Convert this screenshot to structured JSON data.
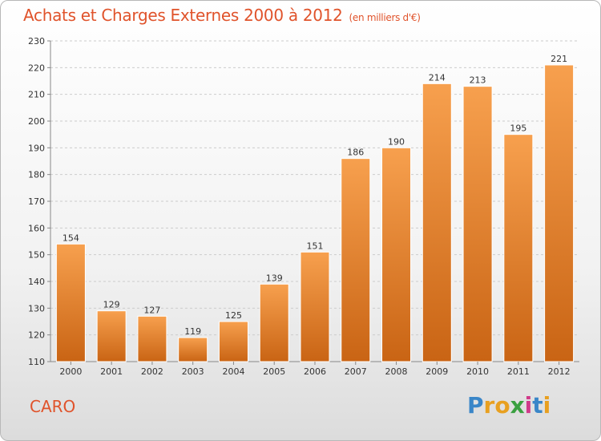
{
  "title": "Achats et Charges Externes 2000 à 2012",
  "subtitle": "(en milliers d'€)",
  "commune": "CARO",
  "logo": {
    "text": "Proxiti",
    "letters": [
      {
        "ch": "P",
        "color": "#3a86c8"
      },
      {
        "ch": "r",
        "color": "#e8a020"
      },
      {
        "ch": "o",
        "color": "#e8a020"
      },
      {
        "ch": "x",
        "color": "#3aa040"
      },
      {
        "ch": "i",
        "color": "#d03a8a"
      },
      {
        "ch": "t",
        "color": "#3a86c8"
      },
      {
        "ch": "i",
        "color": "#e8a020"
      }
    ]
  },
  "colors": {
    "title": "#e0532b",
    "bar_top": "#f7a04e",
    "bar_bottom": "#c96414",
    "grid": "#cccccc",
    "axis": "#888888"
  },
  "chart_data": {
    "type": "bar",
    "title": "Achats et Charges Externes 2000 à 2012",
    "subtitle": "(en milliers d'€)",
    "categories": [
      "2000",
      "2001",
      "2002",
      "2003",
      "2004",
      "2005",
      "2006",
      "2007",
      "2008",
      "2009",
      "2010",
      "2011",
      "2012"
    ],
    "values": [
      154,
      129,
      127,
      119,
      125,
      139,
      151,
      186,
      190,
      214,
      213,
      195,
      221
    ],
    "ylim": [
      110,
      230
    ],
    "yticks": [
      110,
      120,
      130,
      140,
      150,
      160,
      170,
      180,
      190,
      200,
      210,
      220,
      230
    ],
    "grid": true,
    "grid_style": "dashed horizontal",
    "legend": "none"
  }
}
